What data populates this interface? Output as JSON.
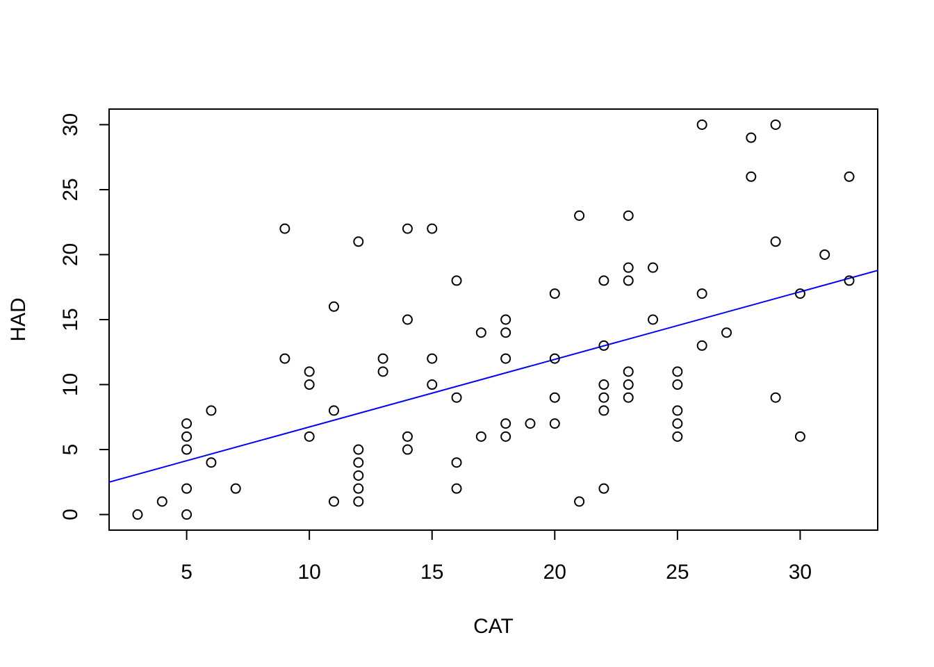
{
  "chart_data": {
    "type": "scatter",
    "title": "",
    "xlabel": "CAT",
    "ylabel": "HAD",
    "xlim": [
      1.84,
      33.16
    ],
    "ylim": [
      -1.2,
      31.2
    ],
    "xticks": [
      5,
      10,
      15,
      20,
      25,
      30
    ],
    "yticks": [
      0,
      5,
      10,
      15,
      20,
      25,
      30
    ],
    "xtick_labels": [
      "5",
      "10",
      "15",
      "20",
      "25",
      "30"
    ],
    "ytick_labels": [
      "0",
      "5",
      "10",
      "15",
      "20",
      "25",
      "30"
    ],
    "grid": false,
    "point_color": "#000000",
    "line_color": "#0000ff",
    "points": [
      {
        "x": 3,
        "y": 0
      },
      {
        "x": 4,
        "y": 1
      },
      {
        "x": 5,
        "y": 0
      },
      {
        "x": 5,
        "y": 2
      },
      {
        "x": 5,
        "y": 5
      },
      {
        "x": 5,
        "y": 6
      },
      {
        "x": 5,
        "y": 7
      },
      {
        "x": 6,
        "y": 4
      },
      {
        "x": 6,
        "y": 8
      },
      {
        "x": 7,
        "y": 2
      },
      {
        "x": 9,
        "y": 12
      },
      {
        "x": 9,
        "y": 22
      },
      {
        "x": 10,
        "y": 6
      },
      {
        "x": 10,
        "y": 10
      },
      {
        "x": 10,
        "y": 11
      },
      {
        "x": 11,
        "y": 1
      },
      {
        "x": 11,
        "y": 8
      },
      {
        "x": 11,
        "y": 16
      },
      {
        "x": 12,
        "y": 1
      },
      {
        "x": 12,
        "y": 2
      },
      {
        "x": 12,
        "y": 3
      },
      {
        "x": 12,
        "y": 4
      },
      {
        "x": 12,
        "y": 5
      },
      {
        "x": 12,
        "y": 21
      },
      {
        "x": 13,
        "y": 11
      },
      {
        "x": 13,
        "y": 12
      },
      {
        "x": 14,
        "y": 5
      },
      {
        "x": 14,
        "y": 6
      },
      {
        "x": 14,
        "y": 15
      },
      {
        "x": 14,
        "y": 22
      },
      {
        "x": 15,
        "y": 10
      },
      {
        "x": 15,
        "y": 12
      },
      {
        "x": 15,
        "y": 22
      },
      {
        "x": 16,
        "y": 2
      },
      {
        "x": 16,
        "y": 4
      },
      {
        "x": 16,
        "y": 9
      },
      {
        "x": 16,
        "y": 18
      },
      {
        "x": 17,
        "y": 6
      },
      {
        "x": 17,
        "y": 14
      },
      {
        "x": 18,
        "y": 6
      },
      {
        "x": 18,
        "y": 7
      },
      {
        "x": 18,
        "y": 12
      },
      {
        "x": 18,
        "y": 14
      },
      {
        "x": 18,
        "y": 15
      },
      {
        "x": 19,
        "y": 7
      },
      {
        "x": 20,
        "y": 7
      },
      {
        "x": 20,
        "y": 9
      },
      {
        "x": 20,
        "y": 12
      },
      {
        "x": 20,
        "y": 17
      },
      {
        "x": 21,
        "y": 1
      },
      {
        "x": 21,
        "y": 23
      },
      {
        "x": 22,
        "y": 2
      },
      {
        "x": 22,
        "y": 8
      },
      {
        "x": 22,
        "y": 9
      },
      {
        "x": 22,
        "y": 10
      },
      {
        "x": 22,
        "y": 13
      },
      {
        "x": 22,
        "y": 18
      },
      {
        "x": 23,
        "y": 9
      },
      {
        "x": 23,
        "y": 10
      },
      {
        "x": 23,
        "y": 11
      },
      {
        "x": 23,
        "y": 18
      },
      {
        "x": 23,
        "y": 19
      },
      {
        "x": 23,
        "y": 23
      },
      {
        "x": 24,
        "y": 15
      },
      {
        "x": 24,
        "y": 19
      },
      {
        "x": 25,
        "y": 6
      },
      {
        "x": 25,
        "y": 7
      },
      {
        "x": 25,
        "y": 8
      },
      {
        "x": 25,
        "y": 10
      },
      {
        "x": 25,
        "y": 11
      },
      {
        "x": 26,
        "y": 13
      },
      {
        "x": 26,
        "y": 17
      },
      {
        "x": 26,
        "y": 30
      },
      {
        "x": 27,
        "y": 14
      },
      {
        "x": 28,
        "y": 26
      },
      {
        "x": 28,
        "y": 29
      },
      {
        "x": 29,
        "y": 9
      },
      {
        "x": 29,
        "y": 21
      },
      {
        "x": 29,
        "y": 30
      },
      {
        "x": 30,
        "y": 6
      },
      {
        "x": 30,
        "y": 17
      },
      {
        "x": 31,
        "y": 20
      },
      {
        "x": 32,
        "y": 18
      },
      {
        "x": 32,
        "y": 26
      }
    ],
    "regression_line": {
      "intercept": 1.54,
      "slope": 0.52
    }
  }
}
